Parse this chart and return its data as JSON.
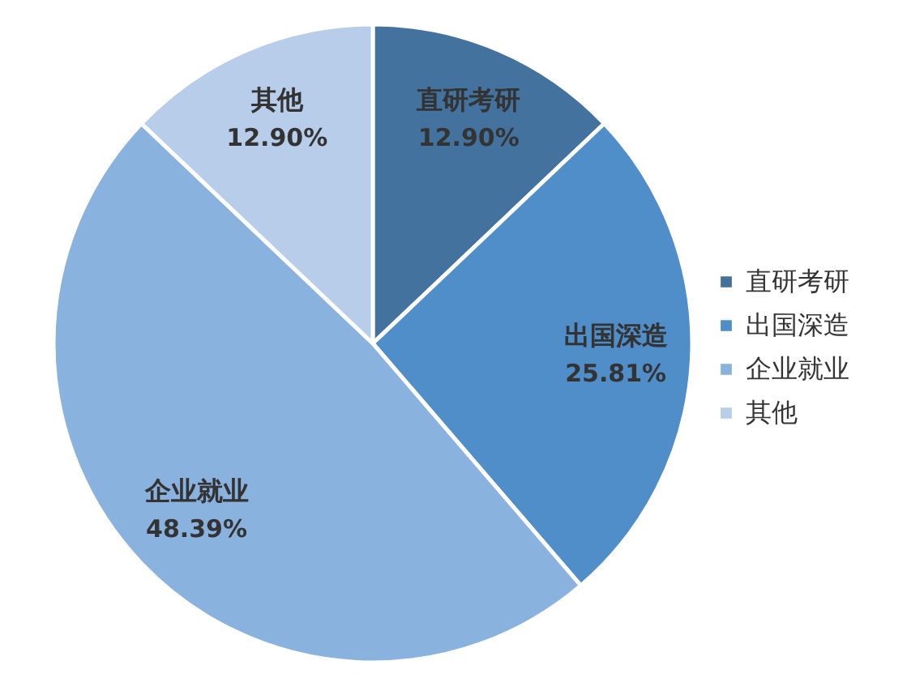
{
  "chart_data": {
    "type": "pie",
    "categories": [
      "直研考研",
      "出国深造",
      "企业就业",
      "其他"
    ],
    "values": [
      12.9,
      25.81,
      48.39,
      12.9
    ],
    "value_labels": [
      "12.90%",
      "25.81%",
      "48.39%",
      "12.90%"
    ],
    "colors": [
      "#44729f",
      "#4f8ec9",
      "#8ab2df",
      "#b7cde9"
    ],
    "legend": "right"
  }
}
